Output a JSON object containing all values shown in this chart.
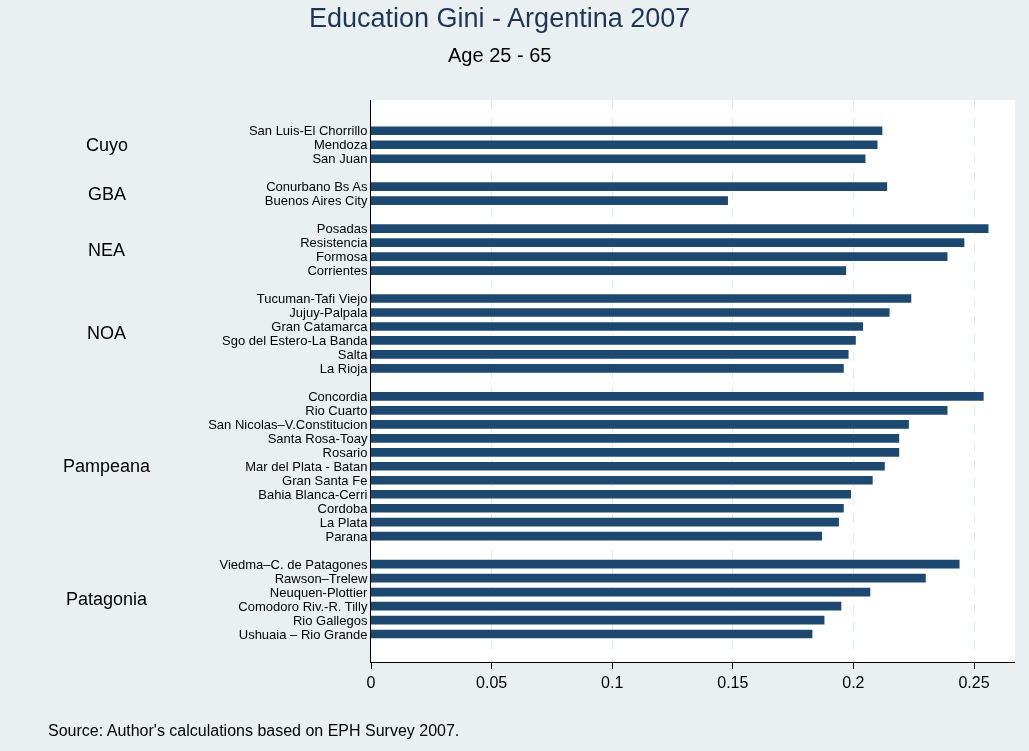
{
  "chart_data": {
    "type": "bar",
    "orientation": "horizontal",
    "title": "Education Gini - Argentina 2007",
    "subtitle": "Age 25 - 65",
    "categories": [
      "San Luis-El Chorrillo",
      "Mendoza",
      "San Juan",
      null,
      "Conurbano Bs As",
      "Buenos Aires City",
      null,
      "Posadas",
      "Resistencia",
      "Formosa",
      "Corrientes",
      null,
      "Tucuman-Tafi Viejo",
      "Jujuy-Palpala",
      "Gran Catamarca",
      "Sgo del Estero-La Banda",
      "Salta",
      "La Rioja",
      null,
      "Concordia",
      "Rio Cuarto",
      "San Nicolas–V.Constitucion",
      "Santa Rosa-Toay",
      "Rosario",
      "Mar del Plata - Batan",
      "Gran Santa Fe",
      "Bahia Blanca-Cerri",
      "Cordoba",
      "La Plata",
      "Parana",
      null,
      "Viedma–C. de Patagones",
      "Rawson–Trelew",
      "Neuquen-Plottier",
      "Comodoro Riv.-R. Tilly",
      "Rio Gallegos",
      "Ushuaia – Rio Grande"
    ],
    "values": [
      0.212,
      0.21,
      0.205,
      null,
      0.214,
      0.148,
      null,
      0.256,
      0.246,
      0.239,
      0.197,
      null,
      0.224,
      0.215,
      0.204,
      0.201,
      0.198,
      0.196,
      null,
      0.254,
      0.239,
      0.223,
      0.219,
      0.219,
      0.213,
      0.208,
      0.199,
      0.196,
      0.194,
      0.187,
      null,
      0.244,
      0.23,
      0.207,
      0.195,
      0.188,
      0.183
    ],
    "color": "#1d4970",
    "xlim": [
      0,
      0.267
    ],
    "xticks": [
      0,
      0.05,
      0.1,
      0.15,
      0.2,
      0.25
    ],
    "grid": "x",
    "annotations": [
      "Cuyo",
      "GBA",
      "NEA",
      "NOA",
      "Pampeana",
      "Patagonia",
      "Source: Author's calculations based on EPH Survey 2007."
    ]
  }
}
